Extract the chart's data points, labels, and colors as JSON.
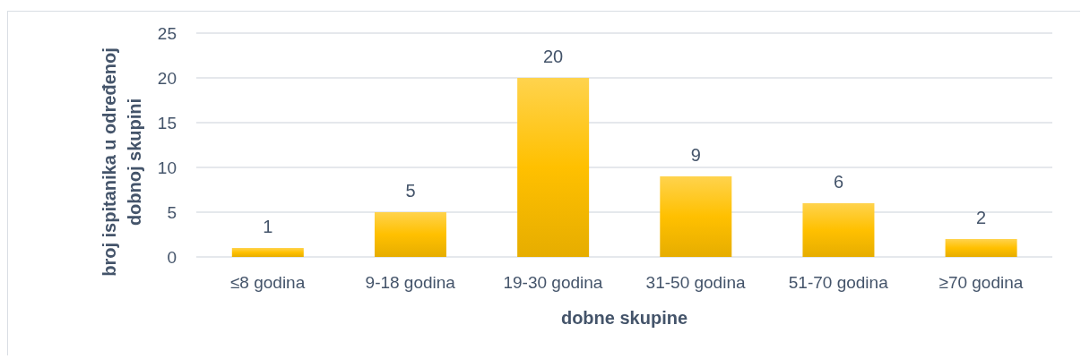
{
  "chart_data": {
    "type": "bar",
    "categories": [
      "≤8 godina",
      "9-18 godina",
      "19-30 godina",
      "31-50 godina",
      "51-70 godina",
      "≥70 godina"
    ],
    "values": [
      1,
      5,
      20,
      9,
      6,
      2
    ],
    "color": "#ffc000",
    "xlabel": "dobne skupine",
    "ylabel": "broj ispitanika u određenoj dobnoj skupini",
    "ylim": [
      0,
      25
    ],
    "yticks": [
      0,
      5,
      10,
      15,
      20,
      25
    ],
    "grid": "y",
    "data_labels": true
  }
}
